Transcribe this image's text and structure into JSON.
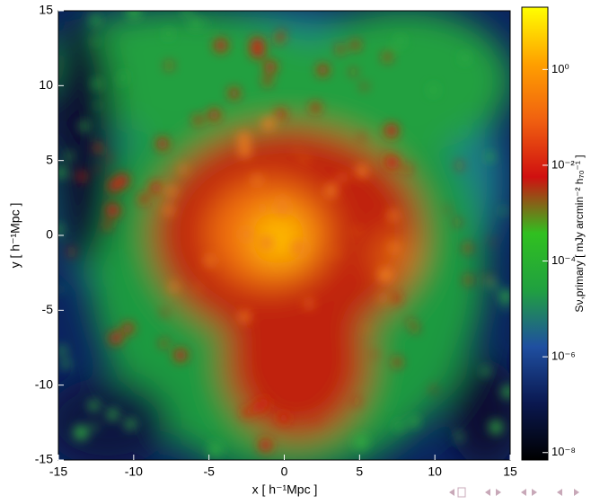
{
  "chart_data": {
    "type": "heatmap",
    "xlabel": "x [ h⁻¹Mpc ]",
    "ylabel": "y [ h⁻¹Mpc ]",
    "xlim": [
      -15,
      15
    ],
    "ylim": [
      -15,
      15
    ],
    "xticks": [
      -15,
      -10,
      -5,
      0,
      5,
      10,
      15
    ],
    "yticks": [
      -15,
      -10,
      -5,
      0,
      5,
      10,
      15
    ],
    "colorbar": {
      "label": "Sν,primary [ mJy arcmin⁻² h₇₀⁻¹ ]",
      "scale": "log",
      "lim": [
        7e-09,
        20
      ],
      "ticks": [
        {
          "value": 1e-08,
          "label": "10⁻⁸"
        },
        {
          "value": 1e-06,
          "label": "10⁻⁶"
        },
        {
          "value": 0.0001,
          "label": "10⁻⁴"
        },
        {
          "value": 0.01,
          "label": "10⁻²"
        },
        {
          "value": 1,
          "label": "10⁰"
        }
      ],
      "colormap": [
        "#000000",
        "#0a1850",
        "#1f4fa0",
        "#20a040",
        "#30c020",
        "#d01010",
        "#f06010",
        "#ffa000",
        "#ffff00"
      ]
    }
  }
}
